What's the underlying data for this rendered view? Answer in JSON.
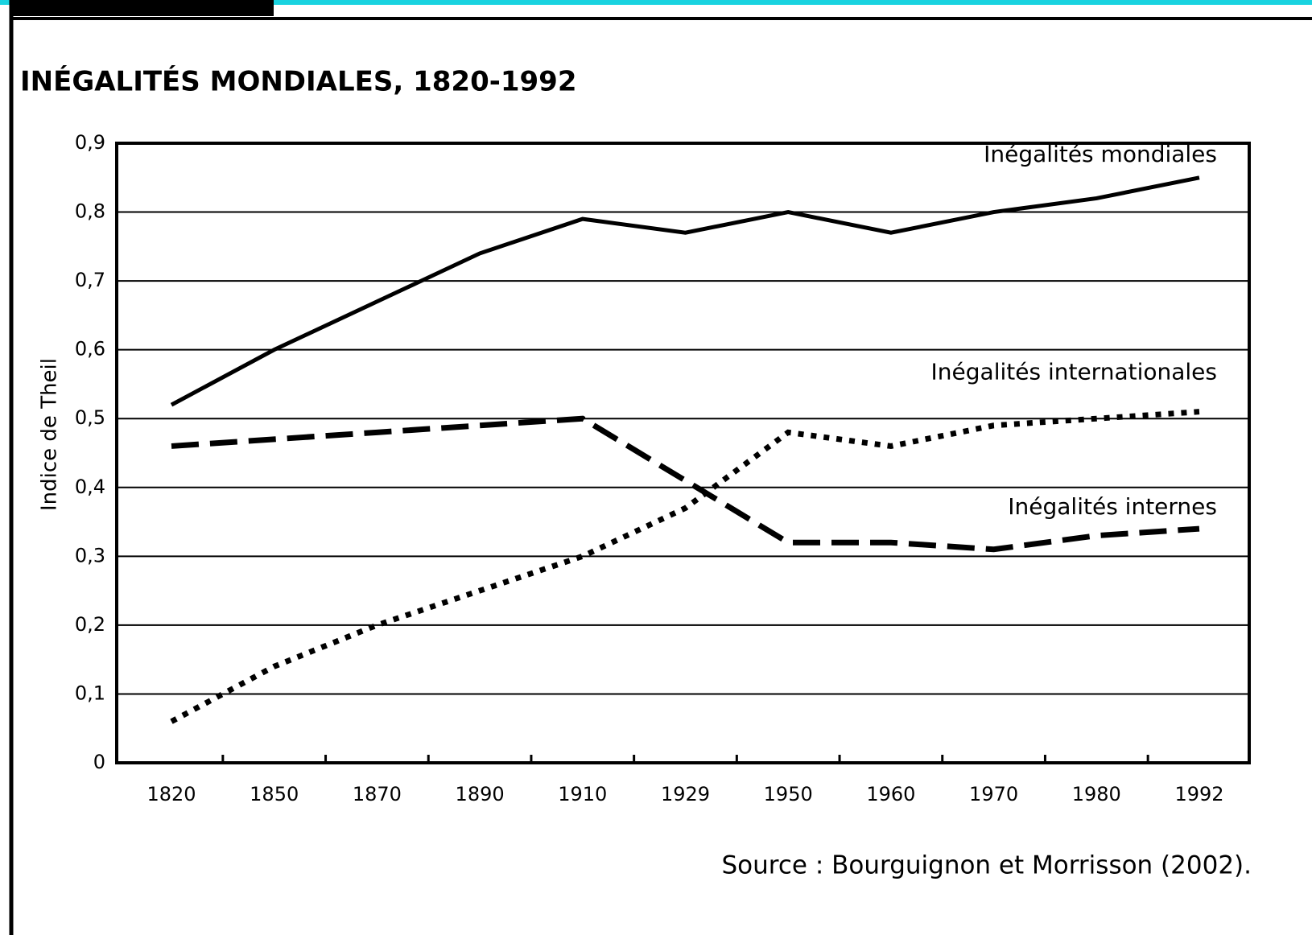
{
  "chart_data": {
    "type": "line",
    "title": "INÉGALITÉS MONDIALES, 1820-1992",
    "y_label": "Indice de Theil",
    "source": "Source : Bourguignon et Morrisson (2002).",
    "categories": [
      "1820",
      "1850",
      "1870",
      "1890",
      "1910",
      "1929",
      "1950",
      "1960",
      "1970",
      "1980",
      "1992"
    ],
    "series": [
      {
        "name": "Inégalités mondiales",
        "color": "#000000",
        "style": "solid",
        "values": [
          0.52,
          0.6,
          0.67,
          0.74,
          0.79,
          0.77,
          0.8,
          0.77,
          0.8,
          0.82,
          0.85
        ]
      },
      {
        "name": "Inégalités internationales",
        "color": "#000000",
        "style": "dotted",
        "values": [
          0.06,
          0.14,
          0.2,
          0.25,
          0.3,
          0.37,
          0.48,
          0.46,
          0.49,
          0.5,
          0.51
        ]
      },
      {
        "name": "Inégalités internes",
        "color": "#000000",
        "style": "dashed",
        "values": [
          0.46,
          0.47,
          0.48,
          0.49,
          0.5,
          0.41,
          0.32,
          0.32,
          0.31,
          0.33,
          0.34
        ]
      }
    ],
    "ylim": [
      0,
      0.9
    ],
    "yticks": [
      0,
      {
        "value": 0.1,
        "label": "0,1"
      },
      {
        "value": 0.2,
        "label": "0,2"
      },
      {
        "value": 0.3,
        "label": "0,3"
      },
      {
        "value": 0.4,
        "label": "0,4"
      },
      {
        "value": 0.5,
        "label": "0,5"
      },
      {
        "value": 0.6,
        "label": "0,6"
      },
      {
        "value": 0.7,
        "label": "0,7"
      },
      {
        "value": 0.8,
        "label": "0,8"
      },
      {
        "value": 0.9,
        "label": "0,9"
      }
    ],
    "grid": true
  }
}
